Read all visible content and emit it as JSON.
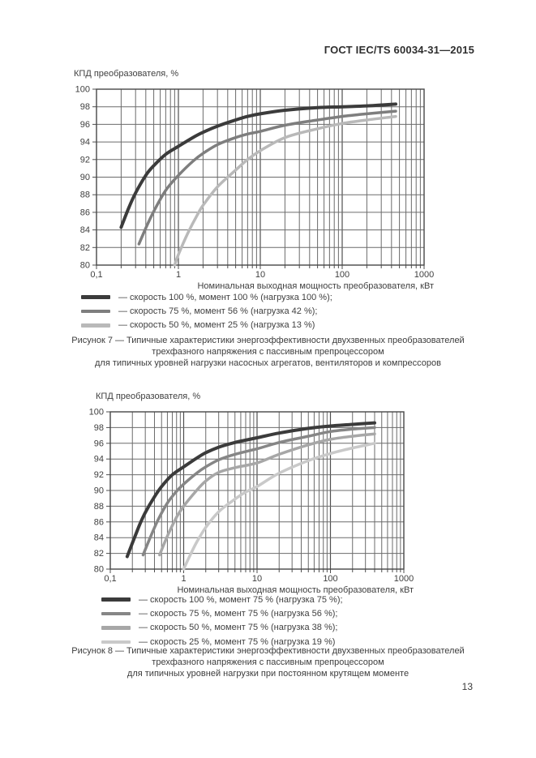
{
  "page": {
    "header": "ГОСТ IEC/TS 60034-31—2015",
    "page_number": "13"
  },
  "colors": {
    "text": "#3f3f3f",
    "grid_minor": "#6b6b6b",
    "grid_major": "#4f4f4f",
    "plot_border": "#474747",
    "curve_dark": "#3b3b3b",
    "curve_gray": "#7e7e7e",
    "curve_mid_gray": "#868686",
    "curve_light_gray": "#a7a7a7",
    "curve_light": "#b9b9b9",
    "curve_lighter": "#c9c9c9"
  },
  "chart_data": [
    {
      "type": "line",
      "id": "figure7",
      "title": "КПД преобразователя, %",
      "xlabel": "Номинальная выходная мощность преобразователя, кВт",
      "x_scale": "log",
      "xlim": [
        0.1,
        1000
      ],
      "ylim": [
        80,
        100
      ],
      "grid": true,
      "legend_position": "below",
      "legend_dash": "—",
      "x_ticks": {
        "values": [
          0.1,
          1,
          10,
          100,
          1000
        ],
        "labels": [
          "0,1",
          "1",
          "10",
          "100",
          "1000"
        ]
      },
      "y_ticks": [
        100,
        98,
        96,
        94,
        92,
        90,
        88,
        86,
        84,
        82,
        80
      ],
      "series": [
        {
          "name": "скорость 100 %, момент 100 % (нагрузка 100 %);",
          "color": "#3b3b3b",
          "width": 4,
          "points": [
            [
              0.2,
              84.3
            ],
            [
              0.25,
              86.6
            ],
            [
              0.3,
              88.2
            ],
            [
              0.4,
              90.2
            ],
            [
              0.5,
              91.3
            ],
            [
              0.7,
              92.6
            ],
            [
              1,
              93.5
            ],
            [
              1.5,
              94.5
            ],
            [
              2,
              95.1
            ],
            [
              3,
              95.8
            ],
            [
              5,
              96.5
            ],
            [
              7,
              96.9
            ],
            [
              10,
              97.2
            ],
            [
              20,
              97.6
            ],
            [
              50,
              97.9
            ],
            [
              100,
              98.0
            ],
            [
              200,
              98.1
            ],
            [
              450,
              98.3
            ]
          ]
        },
        {
          "name": "скорость 75 %, момент 56 % (нагрузка 42 %);",
          "color": "#7e7e7e",
          "width": 3.5,
          "points": [
            [
              0.33,
              82.4
            ],
            [
              0.4,
              84.2
            ],
            [
              0.5,
              86.1
            ],
            [
              0.7,
              88.5
            ],
            [
              1,
              90.2
            ],
            [
              1.5,
              91.8
            ],
            [
              2,
              92.7
            ],
            [
              3,
              93.7
            ],
            [
              5,
              94.5
            ],
            [
              7,
              94.9
            ],
            [
              10,
              95.2
            ],
            [
              20,
              95.9
            ],
            [
              50,
              96.5
            ],
            [
              100,
              96.9
            ],
            [
              200,
              97.2
            ],
            [
              450,
              97.5
            ]
          ]
        },
        {
          "name": "скорость 50 %, момент 25 % (нагрузка 13 %)",
          "color": "#b9b9b9",
          "width": 3.5,
          "points": [
            [
              0.9,
              80.0
            ],
            [
              1,
              81.2
            ],
            [
              1.3,
              83.6
            ],
            [
              1.7,
              85.7
            ],
            [
              2,
              86.8
            ],
            [
              3,
              88.9
            ],
            [
              5,
              90.8
            ],
            [
              7,
              92.0
            ],
            [
              10,
              93.0
            ],
            [
              20,
              94.5
            ],
            [
              50,
              95.5
            ],
            [
              100,
              96.1
            ],
            [
              200,
              96.5
            ],
            [
              450,
              96.9
            ]
          ]
        }
      ],
      "caption": [
        "Рисунок 7 — Типичные характеристики энергоэффективности двухзвенных преобразователей",
        "трехфазного напряжения с пассивным препроцессором",
        "для типичных уровней нагрузки насосных агрегатов, вентиляторов и компрессоров"
      ]
    },
    {
      "type": "line",
      "id": "figure8",
      "title": "КПД преобразователя, %",
      "xlabel": "Номинальная выходная мощность преобразователя, кВт",
      "x_scale": "log",
      "xlim": [
        0.1,
        1000
      ],
      "ylim": [
        80,
        100
      ],
      "grid": true,
      "legend_position": "below",
      "legend_dash": "—",
      "x_ticks": {
        "values": [
          0.1,
          1,
          10,
          100,
          1000
        ],
        "labels": [
          "0,1",
          "1",
          "10",
          "100",
          "1000"
        ]
      },
      "y_ticks": [
        100,
        98,
        96,
        94,
        92,
        90,
        88,
        86,
        84,
        82,
        80
      ],
      "series": [
        {
          "name": "скорость 100 %, момент 75 % (нагрузка 75 %);",
          "color": "#3b3b3b",
          "width": 4,
          "points": [
            [
              0.17,
              81.6
            ],
            [
              0.2,
              83.3
            ],
            [
              0.25,
              85.6
            ],
            [
              0.3,
              87.2
            ],
            [
              0.4,
              89.2
            ],
            [
              0.5,
              90.5
            ],
            [
              0.7,
              92.0
            ],
            [
              1,
              93.0
            ],
            [
              1.5,
              94.1
            ],
            [
              2,
              94.8
            ],
            [
              3,
              95.5
            ],
            [
              5,
              96.1
            ],
            [
              10,
              96.7
            ],
            [
              20,
              97.3
            ],
            [
              50,
              97.9
            ],
            [
              100,
              98.2
            ],
            [
              200,
              98.4
            ],
            [
              400,
              98.6
            ]
          ]
        },
        {
          "name": "скорость 75 %, момент 75 % (нагрузка 56 %);",
          "color": "#868686",
          "width": 3.5,
          "points": [
            [
              0.28,
              81.8
            ],
            [
              0.35,
              84.0
            ],
            [
              0.45,
              86.3
            ],
            [
              0.6,
              88.4
            ],
            [
              0.8,
              89.9
            ],
            [
              1,
              90.8
            ],
            [
              1.5,
              92.2
            ],
            [
              2,
              93.0
            ],
            [
              3,
              93.9
            ],
            [
              5,
              94.6
            ],
            [
              10,
              95.3
            ],
            [
              20,
              96.1
            ],
            [
              50,
              96.9
            ],
            [
              100,
              97.5
            ],
            [
              200,
              97.8
            ],
            [
              400,
              98.0
            ]
          ]
        },
        {
          "name": "скорость 50 %, момент 75 % (нагрузка 38 %);",
          "color": "#a7a7a7",
          "width": 3.5,
          "points": [
            [
              0.47,
              81.8
            ],
            [
              0.6,
              84.2
            ],
            [
              0.8,
              86.6
            ],
            [
              1,
              88.0
            ],
            [
              1.5,
              90.0
            ],
            [
              2,
              91.2
            ],
            [
              3,
              92.3
            ],
            [
              5,
              92.9
            ],
            [
              10,
              93.5
            ],
            [
              20,
              94.6
            ],
            [
              50,
              95.8
            ],
            [
              100,
              96.5
            ],
            [
              200,
              96.9
            ],
            [
              400,
              97.2
            ]
          ]
        },
        {
          "name": "скорость 25 %, момент 75 % (нагрузка 19 %)",
          "color": "#c9c9c9",
          "width": 3.5,
          "points": [
            [
              1,
              80.0
            ],
            [
              1.2,
              81.6
            ],
            [
              1.5,
              83.4
            ],
            [
              2,
              85.3
            ],
            [
              3,
              87.3
            ],
            [
              5,
              88.9
            ],
            [
              7,
              89.8
            ],
            [
              10,
              90.5
            ],
            [
              20,
              92.2
            ],
            [
              50,
              93.8
            ],
            [
              100,
              94.7
            ],
            [
              200,
              95.4
            ],
            [
              400,
              96.0
            ]
          ]
        }
      ],
      "caption": [
        "Рисунок 8 — Типичные характеристики энергоэффективности двухзвенных преобразователей",
        "трехфазного напряжения с пассивным препроцессором",
        "для типичных уровней нагрузки при постоянном крутящем моменте"
      ]
    }
  ]
}
